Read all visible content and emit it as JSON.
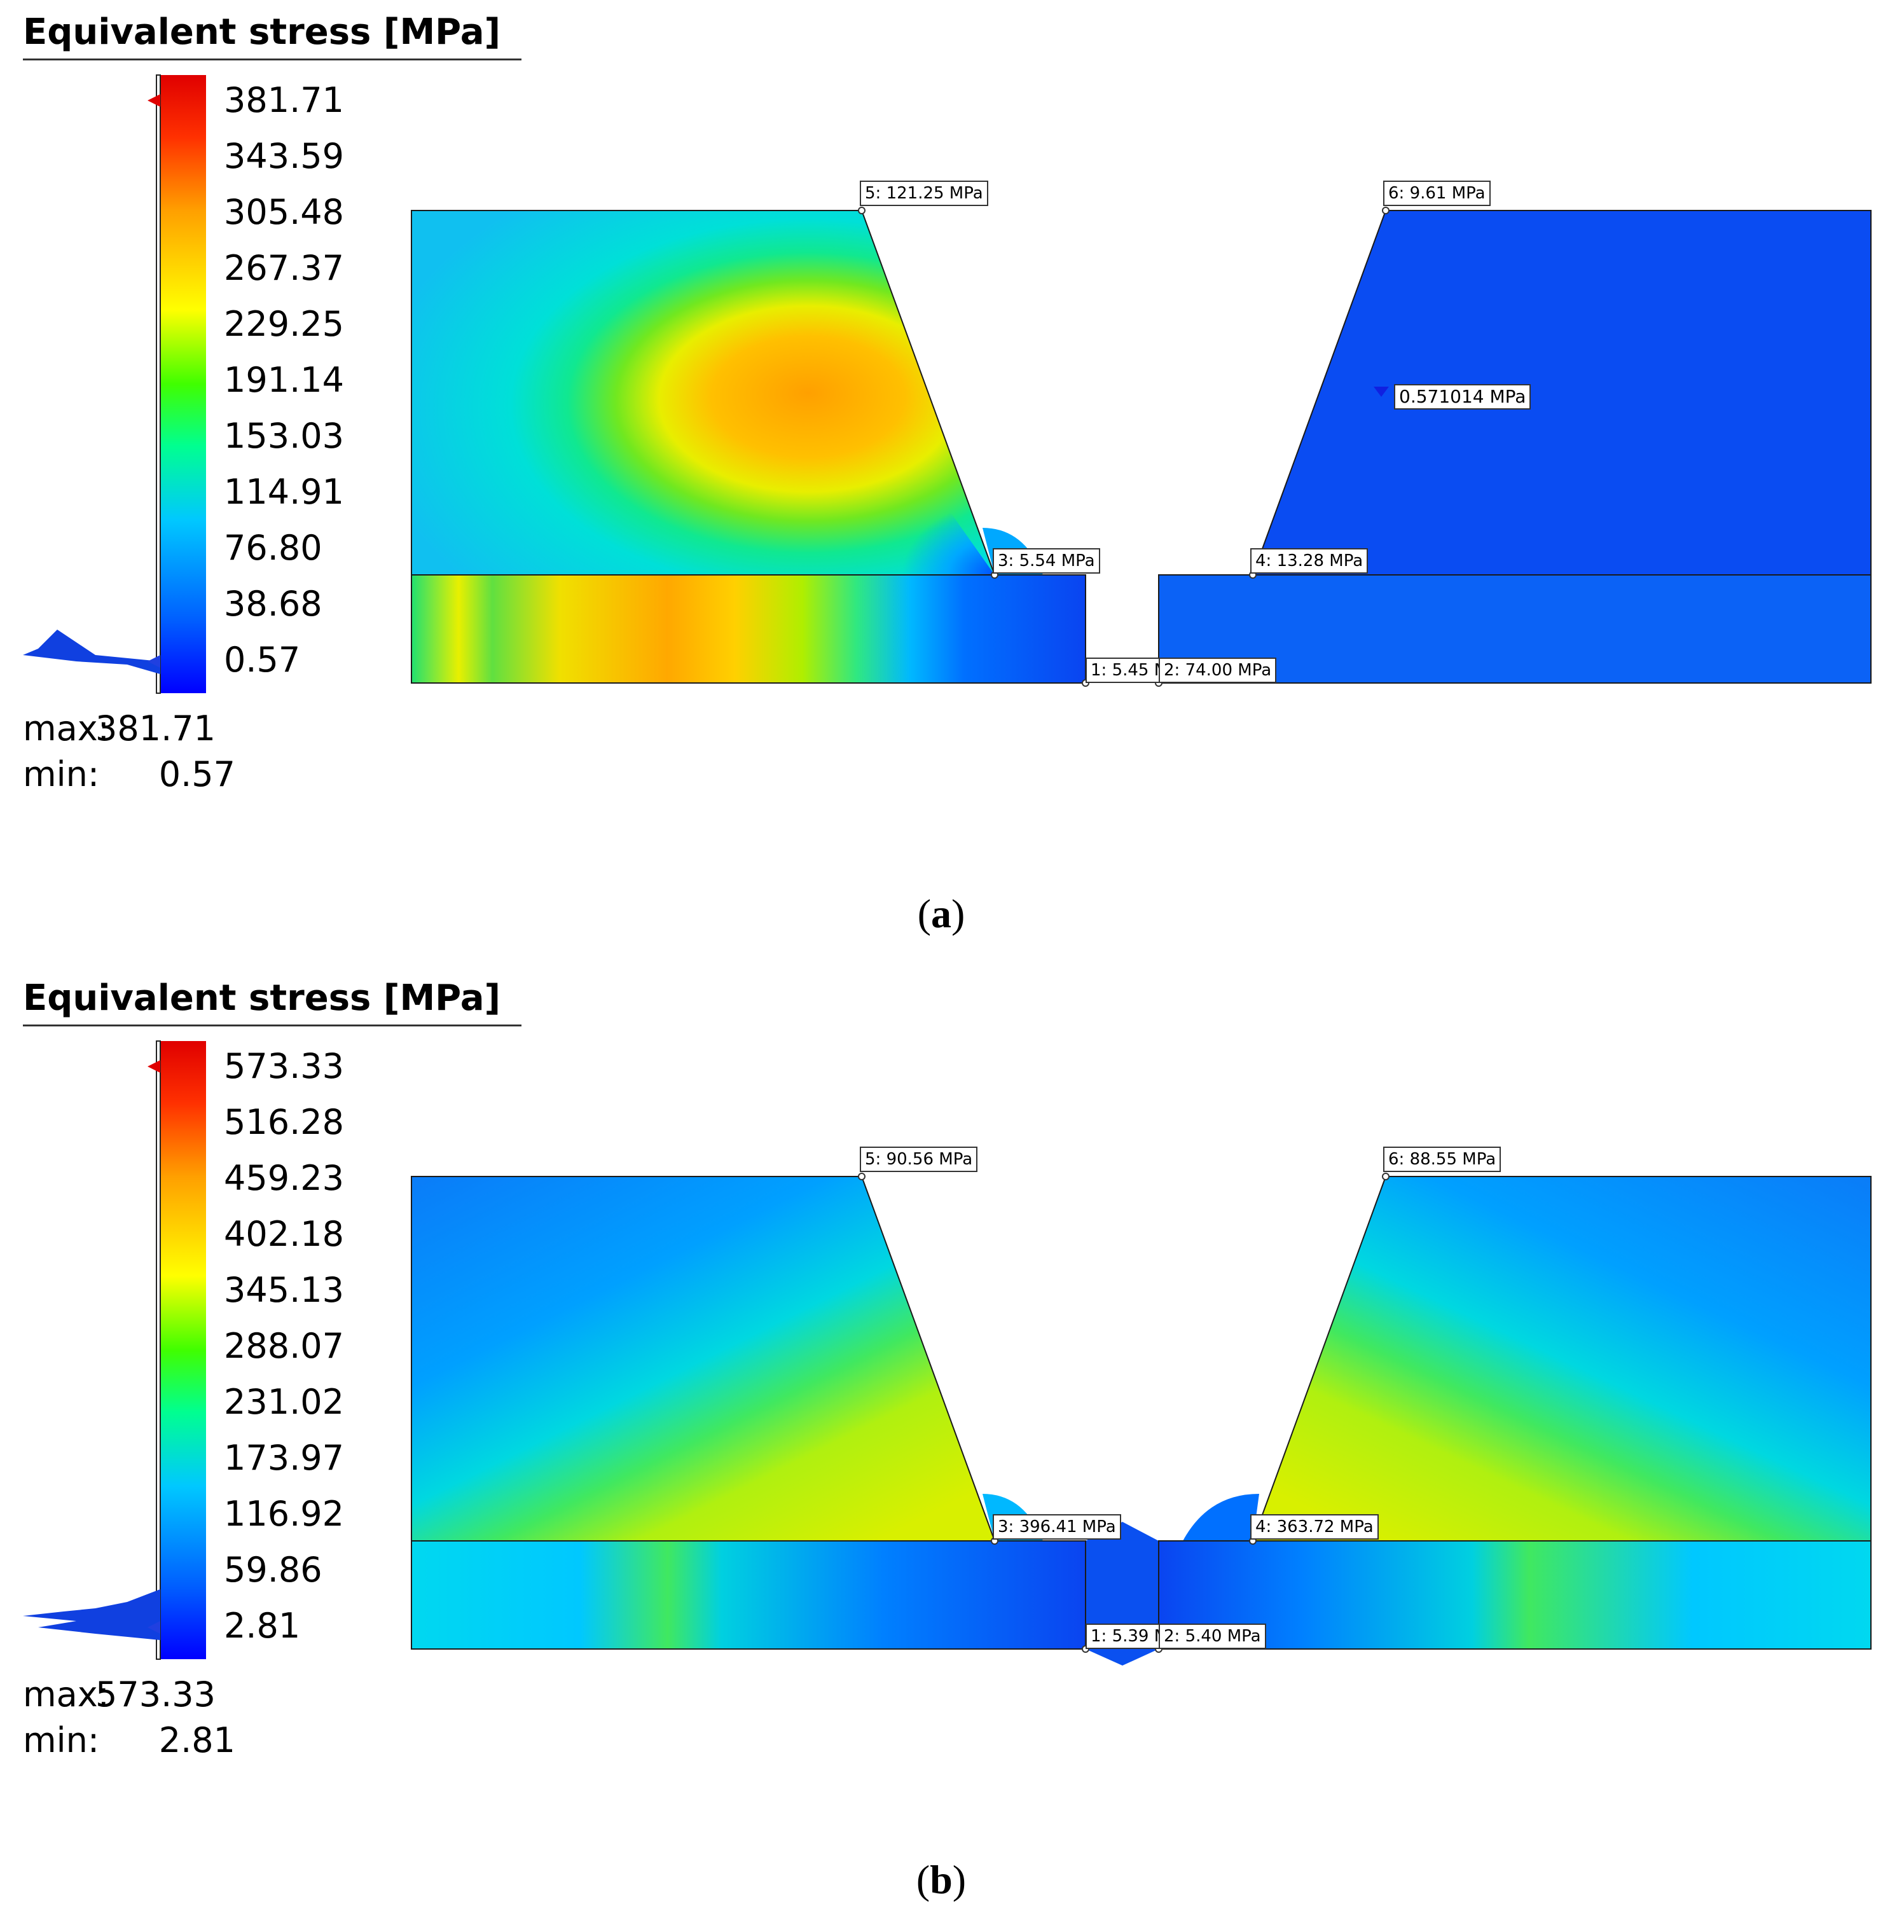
{
  "panels": [
    {
      "legend_title": "Equivalent stress [MPa]",
      "ticks": [
        "381.71",
        "343.59",
        "305.48",
        "267.37",
        "229.25",
        "191.14",
        "153.03",
        "114.91",
        "76.80",
        "38.68",
        "0.57"
      ],
      "max_label": "max:",
      "max_value": "381.71",
      "min_label": "min:",
      "min_value": "0.57",
      "probes": {
        "p1": "1: 5.45 M",
        "p2": "2: 74.00 MPa",
        "p3": "3: 5.54 MPa",
        "p4": "4: 13.28 MPa",
        "p5": "5: 121.25 MPa",
        "p6": "6: 9.61 MPa",
        "pmin": "0.571014 MPa"
      },
      "sublabel_open": "(",
      "sublabel_letter": "a",
      "sublabel_close": ")"
    },
    {
      "legend_title": "Equivalent stress [MPa]",
      "ticks": [
        "573.33",
        "516.28",
        "459.23",
        "402.18",
        "345.13",
        "288.07",
        "231.02",
        "173.97",
        "116.92",
        "59.86",
        "2.81"
      ],
      "max_label": "max:",
      "max_value": "573.33",
      "min_label": "min:",
      "min_value": "2.81",
      "probes": {
        "p1": "1: 5.39 M",
        "p2": "2: 5.40 MPa",
        "p3": "3: 396.41 MPa",
        "p4": "4: 363.72 MPa",
        "p5": "5: 90.56 MPa",
        "p6": "6: 88.55 MPa"
      },
      "sublabel_open": "(",
      "sublabel_letter": "b",
      "sublabel_close": ")"
    }
  ],
  "colors": {
    "colormap": [
      "#0000ff",
      "#0060ff",
      "#00c8ff",
      "#00ff90",
      "#40ff00",
      "#ffff00",
      "#ffa000",
      "#ff3000",
      "#e00000"
    ],
    "deep_blue": "#0a44f0",
    "outline": "#1a1a1a"
  }
}
